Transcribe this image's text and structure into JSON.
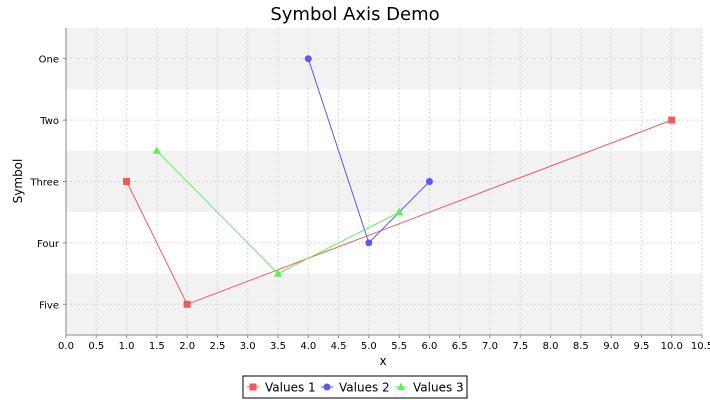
{
  "chart_data": {
    "type": "line",
    "title": "Symbol Axis Demo",
    "xlabel": "x",
    "ylabel": "Symbol",
    "xlim": [
      0.0,
      10.5
    ],
    "x_tick_step": 0.5,
    "x_tick_labels": [
      "0.0",
      "0.5",
      "1.0",
      "1.5",
      "2.0",
      "2.5",
      "3.0",
      "3.5",
      "4.0",
      "4.5",
      "5.0",
      "5.5",
      "6.0",
      "6.5",
      "7.0",
      "7.5",
      "8.0",
      "8.5",
      "9.0",
      "9.5",
      "10.0",
      "10.5"
    ],
    "y_symbols": [
      "One",
      "Two",
      "Three",
      "Four",
      "Five"
    ],
    "ylim": [
      -0.5,
      4.5
    ],
    "y_axis_inverted": true,
    "grid": true,
    "alternating_bands": true,
    "legend_position": "bottom-center",
    "series": [
      {
        "name": "Values 1",
        "marker": "square",
        "color": "#F05A5A",
        "points": [
          {
            "x": 1.0,
            "y": "Three"
          },
          {
            "x": 2.0,
            "y": "Five"
          },
          {
            "x": 10.0,
            "y": "Two"
          }
        ]
      },
      {
        "name": "Values 2",
        "marker": "circle",
        "color": "#5A5AF0",
        "points": [
          {
            "x": 4.0,
            "y": "One"
          },
          {
            "x": 5.0,
            "y": "Four"
          },
          {
            "x": 6.0,
            "y": "Three"
          }
        ]
      },
      {
        "name": "Values 3",
        "marker": "triangle",
        "color": "#5AF05A",
        "points": [
          {
            "x": 1.5,
            "y": 1.5
          },
          {
            "x": 3.5,
            "y": 3.5
          },
          {
            "x": 5.5,
            "y": 2.5
          }
        ]
      }
    ]
  }
}
